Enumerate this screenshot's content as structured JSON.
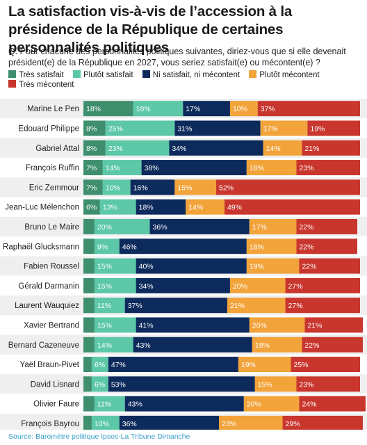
{
  "title": "La satisfaction vis-à-vis de l’accession à la présidence de la République de certaines personnalités politiques",
  "question": "Q. Pour chacune des personnalités politiques suivantes, diriez-vous que si elle devenait président(e) de la République en 2027, vous seriez satisfait(e) ou mécontent(e) ?",
  "source": "Source: Baromètre politique Ipsos-La Tribune Dimanche",
  "colors": {
    "tres_satisfait": "#3f8f6f",
    "plutot_satisfait": "#5cc8a8",
    "ni_ni": "#0d2a5c",
    "plutot_mecontent": "#f2a33a",
    "tres_mecontent": "#c8362e",
    "row_even": "#efefef",
    "row_odd": "#ffffff"
  },
  "chart_data": {
    "type": "bar",
    "orientation": "horizontal",
    "stacked": true,
    "percent": true,
    "legend_position": "top",
    "categories": [
      "Marine Le Pen",
      "Edouard Philippe",
      "Gabriel Attal",
      "François Ruffin",
      "Eric Zemmour",
      "Jean-Luc Mélenchon",
      "Bruno Le Maire",
      "Raphaël Glucksmann",
      "Fabien Roussel",
      "Gérald Darmanin",
      "Laurent Wauquiez",
      "Xavier Bertrand",
      "Bernard Cazeneuve",
      "Yaël Braun-Pivet",
      "David Lisnard",
      "Olivier Faure",
      "François Bayrou"
    ],
    "series": [
      {
        "name": "Très satisfait",
        "color_key": "tres_satisfait",
        "label_color": "#ffffff",
        "values": [
          18,
          8,
          8,
          7,
          7,
          6,
          4,
          4,
          4,
          4,
          4,
          4,
          4,
          3,
          3,
          4,
          3
        ]
      },
      {
        "name": "Plutôt satisfait",
        "color_key": "plutot_satisfait",
        "label_color": "#ffffff",
        "values": [
          18,
          25,
          23,
          14,
          10,
          13,
          20,
          9,
          15,
          15,
          11,
          15,
          14,
          6,
          6,
          11,
          10
        ]
      },
      {
        "name": "Ni satisfait, ni mécontent",
        "color_key": "ni_ni",
        "label_color": "#ffffff",
        "values": [
          17,
          31,
          34,
          38,
          16,
          18,
          36,
          46,
          40,
          34,
          37,
          41,
          43,
          47,
          53,
          43,
          36
        ]
      },
      {
        "name": "Plutôt mécontent",
        "color_key": "plutot_mecontent",
        "label_color": "#ffffff",
        "values": [
          10,
          17,
          14,
          18,
          15,
          14,
          17,
          18,
          19,
          20,
          21,
          20,
          18,
          19,
          15,
          20,
          23
        ]
      },
      {
        "name": "Très mécontent",
        "color_key": "tres_mecontent",
        "label_color": "#ffffff",
        "values": [
          37,
          19,
          21,
          23,
          52,
          49,
          22,
          22,
          22,
          27,
          27,
          21,
          22,
          25,
          23,
          24,
          29
        ]
      }
    ],
    "xlim": [
      0,
      100
    ]
  }
}
